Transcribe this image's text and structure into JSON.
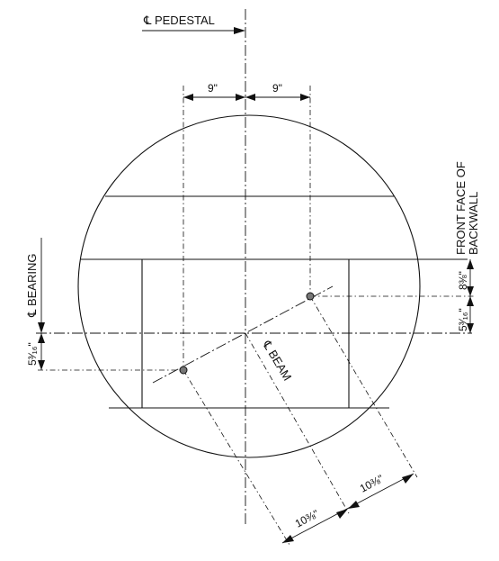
{
  "labels": {
    "cl_pedestal": "℄ PEDESTAL",
    "cl_bearing": "℄ BEARING",
    "cl_beam": "℄ BEAM",
    "front_face_line1": "FRONT FACE OF",
    "front_face_line2": "BACKWALL"
  },
  "dimensions": {
    "left_offset": "9\"",
    "right_offset": "9\"",
    "right_vertical_upper": "8⅜\"",
    "right_vertical_lower": "5³⁄₁₆\"",
    "left_vertical": "5³⁄₁₆\"",
    "diag_lower": "10⅜\"",
    "diag_upper": "10⅜\""
  },
  "colors": {
    "ink": "#111111",
    "bolt_fill": "#777777"
  }
}
